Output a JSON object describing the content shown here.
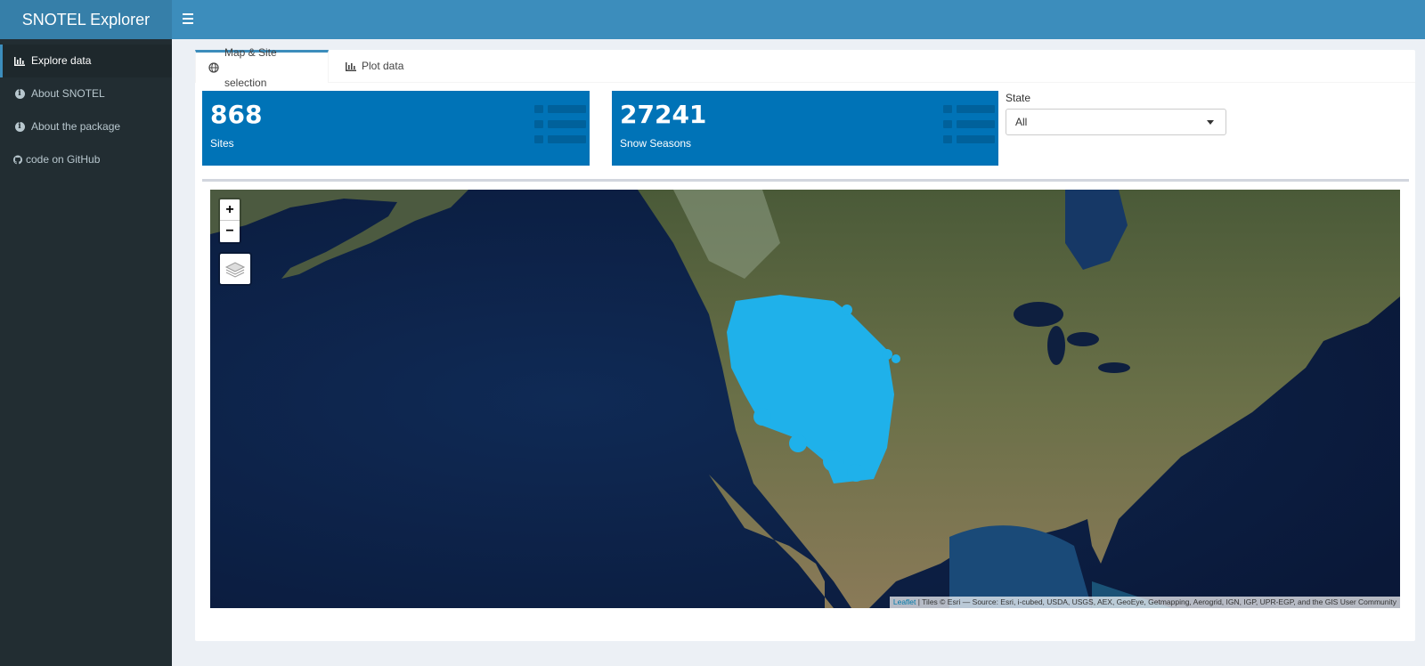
{
  "app": {
    "title": "SNOTEL Explorer"
  },
  "sidebar": {
    "items": [
      {
        "label": "Explore data",
        "icon": "bar-chart-icon",
        "active": true
      },
      {
        "label": "About SNOTEL",
        "icon": "info-circle-icon"
      },
      {
        "label": "About the package",
        "icon": "info-circle-icon"
      },
      {
        "label": "code on GitHub",
        "icon": "github-icon"
      }
    ]
  },
  "tabs": [
    {
      "label": "Map & Site selection",
      "icon": "globe-icon",
      "active": true
    },
    {
      "label": "Plot data",
      "icon": "bar-chart-icon"
    }
  ],
  "value_boxes": [
    {
      "value": "868",
      "label": "Sites",
      "icon": "list-icon"
    },
    {
      "value": "27241",
      "label": "Snow Seasons",
      "icon": "list-icon"
    }
  ],
  "state_filter": {
    "label": "State",
    "selected": "All"
  },
  "map": {
    "zoom_in": "+",
    "zoom_out": "−",
    "attribution_link": "Leaflet",
    "attribution_text": " | Tiles © Esri — Source: Esri, i-cubed, USDA, USGS, AEX, GeoEye, Getmapping, Aerogrid, IGN, IGP, UPR-EGP, and the GIS User Community"
  },
  "colors": {
    "header": "#3c8dbc",
    "sidebar": "#222d32",
    "value_box": "#0073b7",
    "site_marker": "#1fb1ea"
  }
}
